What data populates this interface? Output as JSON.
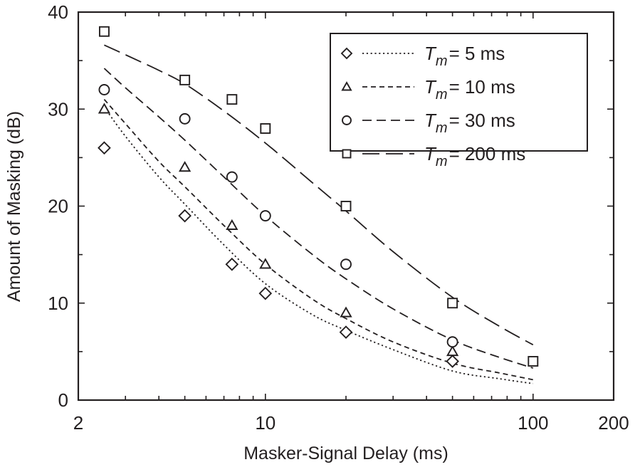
{
  "chart_data": {
    "type": "scatter",
    "title": "",
    "xlabel": "Masker-Signal Delay (ms)",
    "ylabel": "Amount of Masking (dB)",
    "xscale": "log",
    "xlim": [
      2,
      200
    ],
    "ylim": [
      0,
      40
    ],
    "xticks": [
      2,
      10,
      100,
      200
    ],
    "xtick_labels": [
      "2",
      "10",
      "100",
      "200"
    ],
    "yticks": [
      0,
      10,
      20,
      30,
      40
    ],
    "ytick_labels": [
      "0",
      "10",
      "20",
      "30",
      "40"
    ],
    "grid": false,
    "legend_position": "upper right",
    "series": [
      {
        "name": "Tm = 5 ms",
        "legend_var": "T",
        "legend_sub": "m",
        "legend_value": "= 5 ms",
        "marker": "diamond",
        "line_style": "dotted",
        "points": [
          [
            2.5,
            26
          ],
          [
            5,
            19
          ],
          [
            7.5,
            14
          ],
          [
            10,
            11
          ],
          [
            20,
            7
          ],
          [
            50,
            4
          ]
        ],
        "fit_curve": [
          [
            2.5,
            30.2
          ],
          [
            3,
            27.2
          ],
          [
            4,
            23
          ],
          [
            5,
            20.2
          ],
          [
            7,
            16
          ],
          [
            10,
            12
          ],
          [
            15,
            8.8
          ],
          [
            20,
            7.2
          ],
          [
            30,
            5.2
          ],
          [
            50,
            3
          ],
          [
            75,
            2.2
          ],
          [
            100,
            1.7
          ]
        ]
      },
      {
        "name": "Tm = 10 ms",
        "legend_var": "T",
        "legend_sub": "m",
        "legend_value": "= 10 ms",
        "marker": "triangle",
        "line_style": "short-dash",
        "points": [
          [
            2.5,
            30
          ],
          [
            5,
            24
          ],
          [
            7.5,
            18
          ],
          [
            10,
            14
          ],
          [
            20,
            9
          ],
          [
            50,
            5
          ]
        ],
        "fit_curve": [
          [
            2.5,
            31
          ],
          [
            3,
            28.5
          ],
          [
            4,
            24.6
          ],
          [
            5,
            22
          ],
          [
            7,
            18
          ],
          [
            10,
            14
          ],
          [
            15,
            10.4
          ],
          [
            20,
            8.4
          ],
          [
            30,
            6
          ],
          [
            50,
            3.8
          ],
          [
            75,
            2.8
          ],
          [
            100,
            2.1
          ]
        ]
      },
      {
        "name": "Tm = 30 ms",
        "legend_var": "T",
        "legend_sub": "m",
        "legend_value": "= 30 ms",
        "marker": "circle",
        "line_style": "medium-dash",
        "points": [
          [
            2.5,
            32
          ],
          [
            5,
            29
          ],
          [
            7.5,
            23
          ],
          [
            10,
            19
          ],
          [
            20,
            14
          ],
          [
            50,
            6
          ]
        ],
        "fit_curve": [
          [
            2.5,
            34.2
          ],
          [
            3,
            32.2
          ],
          [
            4,
            29.2
          ],
          [
            5,
            26.8
          ],
          [
            7,
            23
          ],
          [
            10,
            19
          ],
          [
            15,
            15
          ],
          [
            20,
            12.5
          ],
          [
            30,
            9.4
          ],
          [
            50,
            6.2
          ],
          [
            75,
            4.4
          ],
          [
            100,
            3.3
          ]
        ]
      },
      {
        "name": "Tm = 200 ms",
        "legend_var": "T",
        "legend_sub": "m",
        "legend_value": "= 200 ms",
        "marker": "square",
        "line_style": "long-dash",
        "points": [
          [
            2.5,
            38
          ],
          [
            5,
            33
          ],
          [
            7.5,
            31
          ],
          [
            10,
            28
          ],
          [
            20,
            20
          ],
          [
            50,
            10
          ],
          [
            100,
            4
          ]
        ],
        "fit_curve": [
          [
            2.5,
            36.6
          ],
          [
            3,
            35.6
          ],
          [
            4,
            34
          ],
          [
            5,
            32.6
          ],
          [
            7,
            29.8
          ],
          [
            10,
            26.5
          ],
          [
            15,
            22.4
          ],
          [
            20,
            19.5
          ],
          [
            30,
            15.3
          ],
          [
            50,
            10.6
          ],
          [
            75,
            7.6
          ],
          [
            100,
            5.7
          ]
        ]
      }
    ]
  }
}
